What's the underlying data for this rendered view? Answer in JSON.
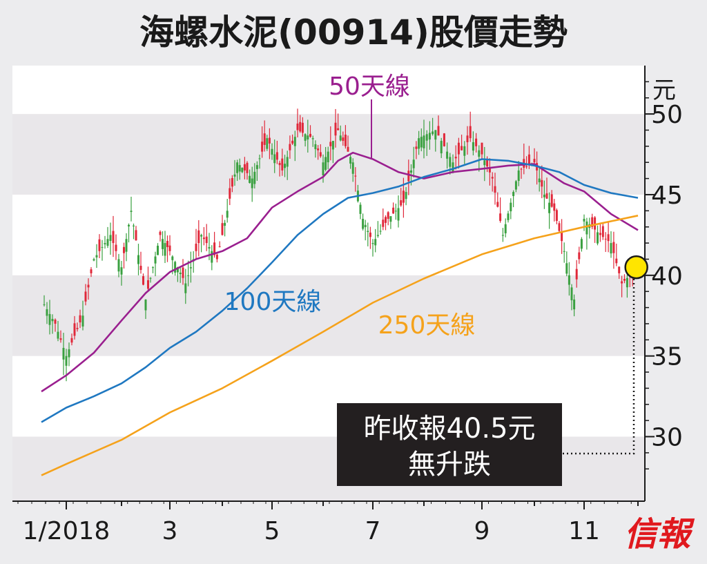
{
  "colors": {
    "background": "#ececee",
    "plot_background": "#ffffff",
    "band": "#e9e7ea",
    "candle_up": "#3aa040",
    "candle_down": "#e0283a",
    "ma50": "#9a1f8f",
    "ma100": "#1f78c1",
    "ma250": "#f5a21b",
    "marker": "#ffe500",
    "callout_bg": "#231f20",
    "callout_text": "#ffffff",
    "logo": "#e0191e",
    "text": "#1a1a1a"
  },
  "title": "海螺水泥(00914)股價走勢",
  "logo_text": "信報",
  "callout": {
    "line1": "昨收報40.5元",
    "line2": "無升跌"
  },
  "chart_data": {
    "type": "line",
    "title": "海螺水泥(00914)股價走勢",
    "y_unit": "元",
    "ylim": [
      26,
      53
    ],
    "y_ticks": [
      30,
      35,
      40,
      45,
      50
    ],
    "x_tick_labels": [
      "1/2018",
      "3",
      "5",
      "7",
      "9",
      "11"
    ],
    "x_range_months": [
      0.55,
      12.0
    ],
    "grid": "alternating horizontal bands",
    "series": [
      {
        "name": "50天線",
        "x": [
          0.55,
          1.0,
          1.5,
          2.0,
          2.5,
          3.0,
          3.5,
          4.0,
          4.5,
          5.0,
          5.5,
          6.0,
          6.3,
          6.6,
          7.0,
          7.5,
          8.0,
          8.5,
          9.0,
          9.5,
          10.0,
          10.3,
          10.6,
          11.0,
          11.5,
          12.0
        ],
        "values": [
          32.8,
          33.8,
          35.2,
          37.2,
          38.9,
          40.2,
          41.0,
          41.5,
          42.3,
          44.2,
          45.2,
          46.1,
          47.1,
          47.6,
          47.2,
          46.4,
          46.0,
          46.4,
          46.6,
          46.8,
          46.9,
          46.3,
          45.7,
          45.2,
          43.8,
          42.8
        ]
      },
      {
        "name": "100天線",
        "x": [
          0.55,
          1.0,
          1.5,
          2.0,
          2.5,
          3.0,
          3.5,
          4.0,
          4.5,
          5.0,
          5.5,
          6.0,
          6.5,
          7.0,
          7.5,
          8.0,
          8.5,
          9.0,
          9.5,
          10.0,
          10.5,
          11.0,
          11.5,
          12.0
        ],
        "values": [
          30.9,
          31.8,
          32.5,
          33.3,
          34.3,
          35.5,
          36.5,
          37.8,
          39.2,
          40.8,
          42.5,
          43.8,
          44.8,
          45.1,
          45.5,
          46.1,
          46.6,
          47.2,
          47.1,
          46.8,
          46.4,
          45.6,
          45.1,
          44.8
        ]
      },
      {
        "name": "250天線",
        "x": [
          0.55,
          1.0,
          2.0,
          3.0,
          4.0,
          5.0,
          6.0,
          7.0,
          8.0,
          9.0,
          10.0,
          11.0,
          12.0
        ],
        "values": [
          27.6,
          28.3,
          29.8,
          31.5,
          33.0,
          34.7,
          36.5,
          38.3,
          39.8,
          41.3,
          42.3,
          43.0,
          43.7
        ]
      }
    ],
    "series_labels": [
      "50天線",
      "100天線",
      "250天線"
    ],
    "last_close": {
      "x_month": 11.97,
      "value": 40.5
    }
  }
}
